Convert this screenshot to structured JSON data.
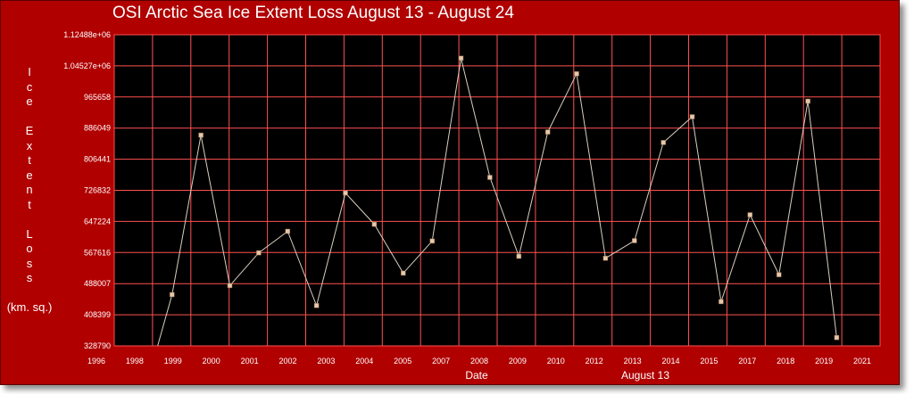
{
  "colors": {
    "frame": "#b00000",
    "plot_background": "#000000",
    "grid": "#ff5050",
    "line": "#d9cfc0",
    "marker": "#e8c8a8",
    "text": "#ffffff"
  },
  "chart_data": {
    "type": "line",
    "title": "OSI Arctic Sea Ice Extent Loss August 13 - August 24",
    "ylabel": "I c e   E x t e n t   L o s s   (km. sq.)",
    "ylabel_lines": [
      "I",
      "c",
      "e",
      "",
      "E",
      "x",
      "t",
      "e",
      "n",
      "t",
      "",
      "L",
      "o",
      "s",
      "s",
      "",
      "(km. sq.)"
    ],
    "xlabel": "Date",
    "xlabel_secondary": "August 13",
    "ylim": [
      328790,
      1124880
    ],
    "xlim": [
      1996,
      2022.5
    ],
    "y_ticks": [
      "1.12488e+06",
      "1.04527e+06",
      "965658",
      "886049",
      "806441",
      "726832",
      "647224",
      "567616",
      "488007",
      "408399",
      "328790"
    ],
    "x_ticks": [
      "1996",
      "1998",
      "1999",
      "2000",
      "2001",
      "2002",
      "2003",
      "2004",
      "2005",
      "2007",
      "2008",
      "2009",
      "2010",
      "2012",
      "2013",
      "2014",
      "2015",
      "2017",
      "2018",
      "2019",
      "2021"
    ],
    "grid": true,
    "series": [
      {
        "x": [
          1997.5,
          1998,
          1999,
          2000,
          2001,
          2002,
          2003,
          2004,
          2005,
          2006,
          2007,
          2008,
          2009,
          2010,
          2011,
          2012,
          2013,
          2014,
          2015,
          2016,
          2017,
          2018,
          2019,
          2020,
          2021
        ],
        "values": [
          328790,
          460000,
          868000,
          483000,
          567000,
          622000,
          432000,
          720000,
          640000,
          515000,
          597000,
          1065000,
          760000,
          558000,
          876000,
          1025000,
          553000,
          598000,
          849000,
          915000,
          442000,
          664000,
          511000,
          955000,
          350000
        ]
      }
    ]
  }
}
